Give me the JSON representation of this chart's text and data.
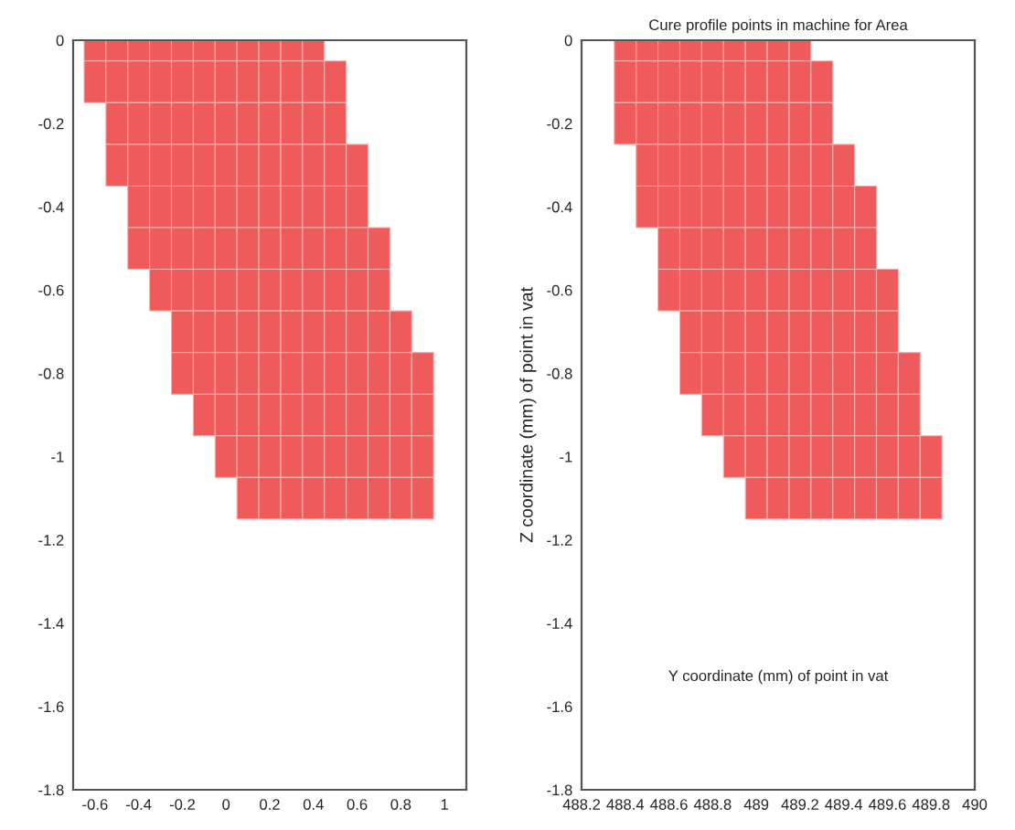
{
  "chart_data": [
    {
      "type": "scatter",
      "xlim": [
        -0.7,
        1.1
      ],
      "ylim": [
        -1.8,
        0
      ],
      "xticks": [
        -0.6,
        -0.4,
        -0.2,
        0,
        0.2,
        0.4,
        0.6,
        0.8,
        1
      ],
      "yticks": [
        -1.8,
        -1.6,
        -1.4,
        -1.2,
        -1,
        -0.8,
        -0.6,
        -0.4,
        -0.2,
        0
      ],
      "marker": "square",
      "grid": false,
      "series": [
        {
          "color": "#ef5a5a",
          "x": [
            -0.6,
            -0.5,
            -0.4,
            -0.3,
            -0.2,
            -0.1,
            0,
            0.1,
            0.2,
            0.3,
            0.4
          ],
          "values": [
            0,
            0,
            0,
            0,
            0,
            0,
            0,
            0,
            0,
            0,
            0
          ]
        },
        {
          "color": "#ef5a5a",
          "x": [
            -0.6,
            -0.5,
            -0.4,
            -0.3,
            -0.2,
            -0.1,
            0,
            0.1,
            0.2,
            0.3,
            0.4,
            0.5
          ],
          "values": [
            -0.1,
            -0.1,
            -0.1,
            -0.1,
            -0.1,
            -0.1,
            -0.1,
            -0.1,
            -0.1,
            -0.1,
            -0.1,
            -0.1
          ]
        },
        {
          "color": "#ef5a5a",
          "x": [
            -0.5,
            -0.4,
            -0.3,
            -0.2,
            -0.1,
            0,
            0.1,
            0.2,
            0.3,
            0.4,
            0.5
          ],
          "values": [
            -0.2,
            -0.2,
            -0.2,
            -0.2,
            -0.2,
            -0.2,
            -0.2,
            -0.2,
            -0.2,
            -0.2,
            -0.2
          ]
        },
        {
          "color": "#ef5a5a",
          "x": [
            -0.5,
            -0.4,
            -0.3,
            -0.2,
            -0.1,
            0,
            0.1,
            0.2,
            0.3,
            0.4,
            0.5,
            0.6
          ],
          "values": [
            -0.3,
            -0.3,
            -0.3,
            -0.3,
            -0.3,
            -0.3,
            -0.3,
            -0.3,
            -0.3,
            -0.3,
            -0.3,
            -0.3
          ]
        },
        {
          "color": "#ef5a5a",
          "x": [
            -0.4,
            -0.3,
            -0.2,
            -0.1,
            0,
            0.1,
            0.2,
            0.3,
            0.4,
            0.5,
            0.6
          ],
          "values": [
            -0.4,
            -0.4,
            -0.4,
            -0.4,
            -0.4,
            -0.4,
            -0.4,
            -0.4,
            -0.4,
            -0.4,
            -0.4
          ]
        },
        {
          "color": "#ef5a5a",
          "x": [
            -0.4,
            -0.3,
            -0.2,
            -0.1,
            0,
            0.1,
            0.2,
            0.3,
            0.4,
            0.5,
            0.6,
            0.7
          ],
          "values": [
            -0.5,
            -0.5,
            -0.5,
            -0.5,
            -0.5,
            -0.5,
            -0.5,
            -0.5,
            -0.5,
            -0.5,
            -0.5,
            -0.5
          ]
        },
        {
          "color": "#ef5a5a",
          "x": [
            -0.3,
            -0.2,
            -0.1,
            0,
            0.1,
            0.2,
            0.3,
            0.4,
            0.5,
            0.6,
            0.7
          ],
          "values": [
            -0.6,
            -0.6,
            -0.6,
            -0.6,
            -0.6,
            -0.6,
            -0.6,
            -0.6,
            -0.6,
            -0.6,
            -0.6
          ]
        },
        {
          "color": "#ef5a5a",
          "x": [
            -0.2,
            -0.1,
            0,
            0.1,
            0.2,
            0.3,
            0.4,
            0.5,
            0.6,
            0.7,
            0.8
          ],
          "values": [
            -0.7,
            -0.7,
            -0.7,
            -0.7,
            -0.7,
            -0.7,
            -0.7,
            -0.7,
            -0.7,
            -0.7,
            -0.7
          ]
        },
        {
          "color": "#ef5a5a",
          "x": [
            -0.2,
            -0.1,
            0,
            0.1,
            0.2,
            0.3,
            0.4,
            0.5,
            0.6,
            0.7,
            0.8,
            0.9
          ],
          "values": [
            -0.8,
            -0.8,
            -0.8,
            -0.8,
            -0.8,
            -0.8,
            -0.8,
            -0.8,
            -0.8,
            -0.8,
            -0.8,
            -0.8
          ]
        },
        {
          "color": "#ef5a5a",
          "x": [
            -0.1,
            0,
            0.1,
            0.2,
            0.3,
            0.4,
            0.5,
            0.6,
            0.7,
            0.8,
            0.9
          ],
          "values": [
            -0.9,
            -0.9,
            -0.9,
            -0.9,
            -0.9,
            -0.9,
            -0.9,
            -0.9,
            -0.9,
            -0.9,
            -0.9
          ]
        },
        {
          "color": "#ef5a5a",
          "x": [
            0,
            0.1,
            0.2,
            0.3,
            0.4,
            0.5,
            0.6,
            0.7,
            0.8,
            0.9
          ],
          "values": [
            -1,
            -1,
            -1,
            -1,
            -1,
            -1,
            -1,
            -1,
            -1,
            -1
          ]
        },
        {
          "color": "#ef5a5a",
          "x": [
            0.1,
            0.2,
            0.3,
            0.4,
            0.5,
            0.6,
            0.7,
            0.8,
            0.9
          ],
          "values": [
            -1.1,
            -1.1,
            -1.1,
            -1.1,
            -1.1,
            -1.1,
            -1.1,
            -1.1,
            -1.1
          ]
        }
      ]
    },
    {
      "type": "scatter",
      "title": "Cure profile points in machine for Area",
      "xlabel": "Y coordinate (mm) of point in vat",
      "ylabel": "Z coordinate (mm) of point in vat",
      "xlim": [
        488.2,
        490
      ],
      "ylim": [
        -1.8,
        0
      ],
      "xticks": [
        488.2,
        488.4,
        488.6,
        488.8,
        489,
        489.2,
        489.4,
        489.6,
        489.8,
        490
      ],
      "yticks": [
        -1.8,
        -1.6,
        -1.4,
        -1.2,
        -1,
        -0.8,
        -0.6,
        -0.4,
        -0.2,
        0
      ],
      "marker": "square",
      "grid": false,
      "series": [
        {
          "color": "#ef5a5a",
          "x": [
            488.4,
            488.5,
            488.6,
            488.7,
            488.8,
            488.9,
            489,
            489.1,
            489.2
          ],
          "values": [
            0,
            0,
            0,
            0,
            0,
            0,
            0,
            0,
            0
          ]
        },
        {
          "color": "#ef5a5a",
          "x": [
            488.4,
            488.5,
            488.6,
            488.7,
            488.8,
            488.9,
            489,
            489.1,
            489.2,
            489.3
          ],
          "values": [
            -0.1,
            -0.1,
            -0.1,
            -0.1,
            -0.1,
            -0.1,
            -0.1,
            -0.1,
            -0.1,
            -0.1
          ]
        },
        {
          "color": "#ef5a5a",
          "x": [
            488.4,
            488.5,
            488.6,
            488.7,
            488.8,
            488.9,
            489,
            489.1,
            489.2,
            489.3
          ],
          "values": [
            -0.2,
            -0.2,
            -0.2,
            -0.2,
            -0.2,
            -0.2,
            -0.2,
            -0.2,
            -0.2,
            -0.2
          ]
        },
        {
          "color": "#ef5a5a",
          "x": [
            488.5,
            488.6,
            488.7,
            488.8,
            488.9,
            489,
            489.1,
            489.2,
            489.3,
            489.4
          ],
          "values": [
            -0.3,
            -0.3,
            -0.3,
            -0.3,
            -0.3,
            -0.3,
            -0.3,
            -0.3,
            -0.3,
            -0.3
          ]
        },
        {
          "color": "#ef5a5a",
          "x": [
            488.5,
            488.6,
            488.7,
            488.8,
            488.9,
            489,
            489.1,
            489.2,
            489.3,
            489.4,
            489.5
          ],
          "values": [
            -0.4,
            -0.4,
            -0.4,
            -0.4,
            -0.4,
            -0.4,
            -0.4,
            -0.4,
            -0.4,
            -0.4,
            -0.4
          ]
        },
        {
          "color": "#ef5a5a",
          "x": [
            488.6,
            488.7,
            488.8,
            488.9,
            489,
            489.1,
            489.2,
            489.3,
            489.4,
            489.5
          ],
          "values": [
            -0.5,
            -0.5,
            -0.5,
            -0.5,
            -0.5,
            -0.5,
            -0.5,
            -0.5,
            -0.5,
            -0.5
          ]
        },
        {
          "color": "#ef5a5a",
          "x": [
            488.6,
            488.7,
            488.8,
            488.9,
            489,
            489.1,
            489.2,
            489.3,
            489.4,
            489.5,
            489.6
          ],
          "values": [
            -0.6,
            -0.6,
            -0.6,
            -0.6,
            -0.6,
            -0.6,
            -0.6,
            -0.6,
            -0.6,
            -0.6,
            -0.6
          ]
        },
        {
          "color": "#ef5a5a",
          "x": [
            488.7,
            488.8,
            488.9,
            489,
            489.1,
            489.2,
            489.3,
            489.4,
            489.5,
            489.6
          ],
          "values": [
            -0.7,
            -0.7,
            -0.7,
            -0.7,
            -0.7,
            -0.7,
            -0.7,
            -0.7,
            -0.7,
            -0.7
          ]
        },
        {
          "color": "#ef5a5a",
          "x": [
            488.7,
            488.8,
            488.9,
            489,
            489.1,
            489.2,
            489.3,
            489.4,
            489.5,
            489.6,
            489.7
          ],
          "values": [
            -0.8,
            -0.8,
            -0.8,
            -0.8,
            -0.8,
            -0.8,
            -0.8,
            -0.8,
            -0.8,
            -0.8,
            -0.8
          ]
        },
        {
          "color": "#ef5a5a",
          "x": [
            488.8,
            488.9,
            489,
            489.1,
            489.2,
            489.3,
            489.4,
            489.5,
            489.6,
            489.7
          ],
          "values": [
            -0.9,
            -0.9,
            -0.9,
            -0.9,
            -0.9,
            -0.9,
            -0.9,
            -0.9,
            -0.9,
            -0.9
          ]
        },
        {
          "color": "#ef5a5a",
          "x": [
            488.9,
            489,
            489.1,
            489.2,
            489.3,
            489.4,
            489.5,
            489.6,
            489.7,
            489.8
          ],
          "values": [
            -1,
            -1,
            -1,
            -1,
            -1,
            -1,
            -1,
            -1,
            -1,
            -1
          ]
        },
        {
          "color": "#ef5a5a",
          "x": [
            489,
            489.1,
            489.2,
            489.3,
            489.4,
            489.5,
            489.6,
            489.7,
            489.8
          ],
          "values": [
            -1.1,
            -1.1,
            -1.1,
            -1.1,
            -1.1,
            -1.1,
            -1.1,
            -1.1,
            -1.1
          ]
        }
      ]
    }
  ]
}
